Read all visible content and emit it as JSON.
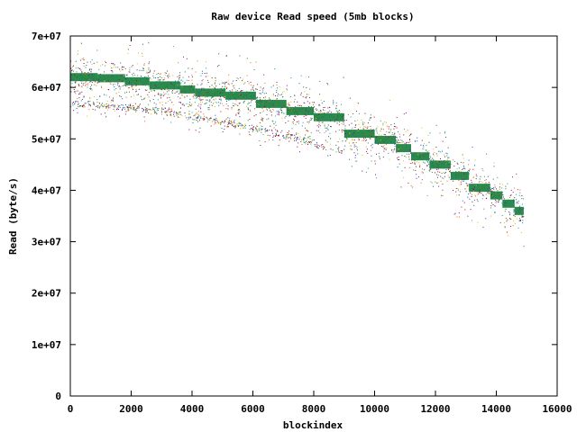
{
  "chart_data": {
    "type": "scatter",
    "title": "Raw device Read speed (5mb blocks)",
    "xlabel": "blockindex",
    "ylabel": "Read (byte/s)",
    "xlim": [
      0,
      16000
    ],
    "ylim": [
      0,
      70000000
    ],
    "xticks": [
      {
        "value": 0,
        "label": "0"
      },
      {
        "value": 2000,
        "label": "2000"
      },
      {
        "value": 4000,
        "label": "4000"
      },
      {
        "value": 6000,
        "label": "6000"
      },
      {
        "value": 8000,
        "label": "8000"
      },
      {
        "value": 10000,
        "label": "10000"
      },
      {
        "value": 12000,
        "label": "12000"
      },
      {
        "value": 14000,
        "label": "14000"
      },
      {
        "value": 16000,
        "label": "16000"
      }
    ],
    "yticks": [
      {
        "value": 0,
        "label": "0"
      },
      {
        "value": 10000000,
        "label": "1e+07"
      },
      {
        "value": 20000000,
        "label": "2e+07"
      },
      {
        "value": 30000000,
        "label": "3e+07"
      },
      {
        "value": 40000000,
        "label": "4e+07"
      },
      {
        "value": 50000000,
        "label": "5e+07"
      },
      {
        "value": 60000000,
        "label": "6e+07"
      },
      {
        "value": 70000000,
        "label": "7e+07"
      }
    ],
    "grid": false,
    "legend": "none",
    "main_band_color": "#1a8040",
    "scatter_colors": [
      "#1a8040",
      "#d4c000",
      "#e07000",
      "#c00000",
      "#0060c0",
      "#00a0a0",
      "#9000a0",
      "#404040"
    ],
    "x_extent": [
      0,
      14900
    ],
    "bands": [
      {
        "x_start": 0,
        "x_end": 900,
        "y": 62000000
      },
      {
        "x_start": 900,
        "x_end": 1800,
        "y": 61800000
      },
      {
        "x_start": 1800,
        "x_end": 2600,
        "y": 61200000
      },
      {
        "x_start": 2600,
        "x_end": 3600,
        "y": 60400000
      },
      {
        "x_start": 3600,
        "x_end": 4100,
        "y": 59600000
      },
      {
        "x_start": 4100,
        "x_end": 5100,
        "y": 59000000
      },
      {
        "x_start": 5100,
        "x_end": 6100,
        "y": 58400000
      },
      {
        "x_start": 6100,
        "x_end": 7100,
        "y": 56800000
      },
      {
        "x_start": 7100,
        "x_end": 8000,
        "y": 55400000
      },
      {
        "x_start": 8000,
        "x_end": 9000,
        "y": 54200000
      },
      {
        "x_start": 9000,
        "x_end": 10000,
        "y": 51000000
      },
      {
        "x_start": 10000,
        "x_end": 10700,
        "y": 49800000
      },
      {
        "x_start": 10700,
        "x_end": 11200,
        "y": 48200000
      },
      {
        "x_start": 11200,
        "x_end": 11800,
        "y": 46600000
      },
      {
        "x_start": 11800,
        "x_end": 12500,
        "y": 45000000
      },
      {
        "x_start": 12500,
        "x_end": 13100,
        "y": 42800000
      },
      {
        "x_start": 13100,
        "x_end": 13800,
        "y": 40500000
      },
      {
        "x_start": 13800,
        "x_end": 14200,
        "y": 39000000
      },
      {
        "x_start": 14200,
        "x_end": 14600,
        "y": 37400000
      },
      {
        "x_start": 14600,
        "x_end": 14900,
        "y": 36000000
      }
    ],
    "trailing_streaks": [
      {
        "x": [
          0,
          2000,
          4000,
          6000,
          8000
        ],
        "y": [
          56800000,
          56200000,
          54800000,
          52500000,
          50000000
        ]
      },
      {
        "x": [
          0,
          3000,
          6000,
          9000
        ],
        "y": [
          57200000,
          55500000,
          52000000,
          47500000
        ]
      }
    ]
  }
}
